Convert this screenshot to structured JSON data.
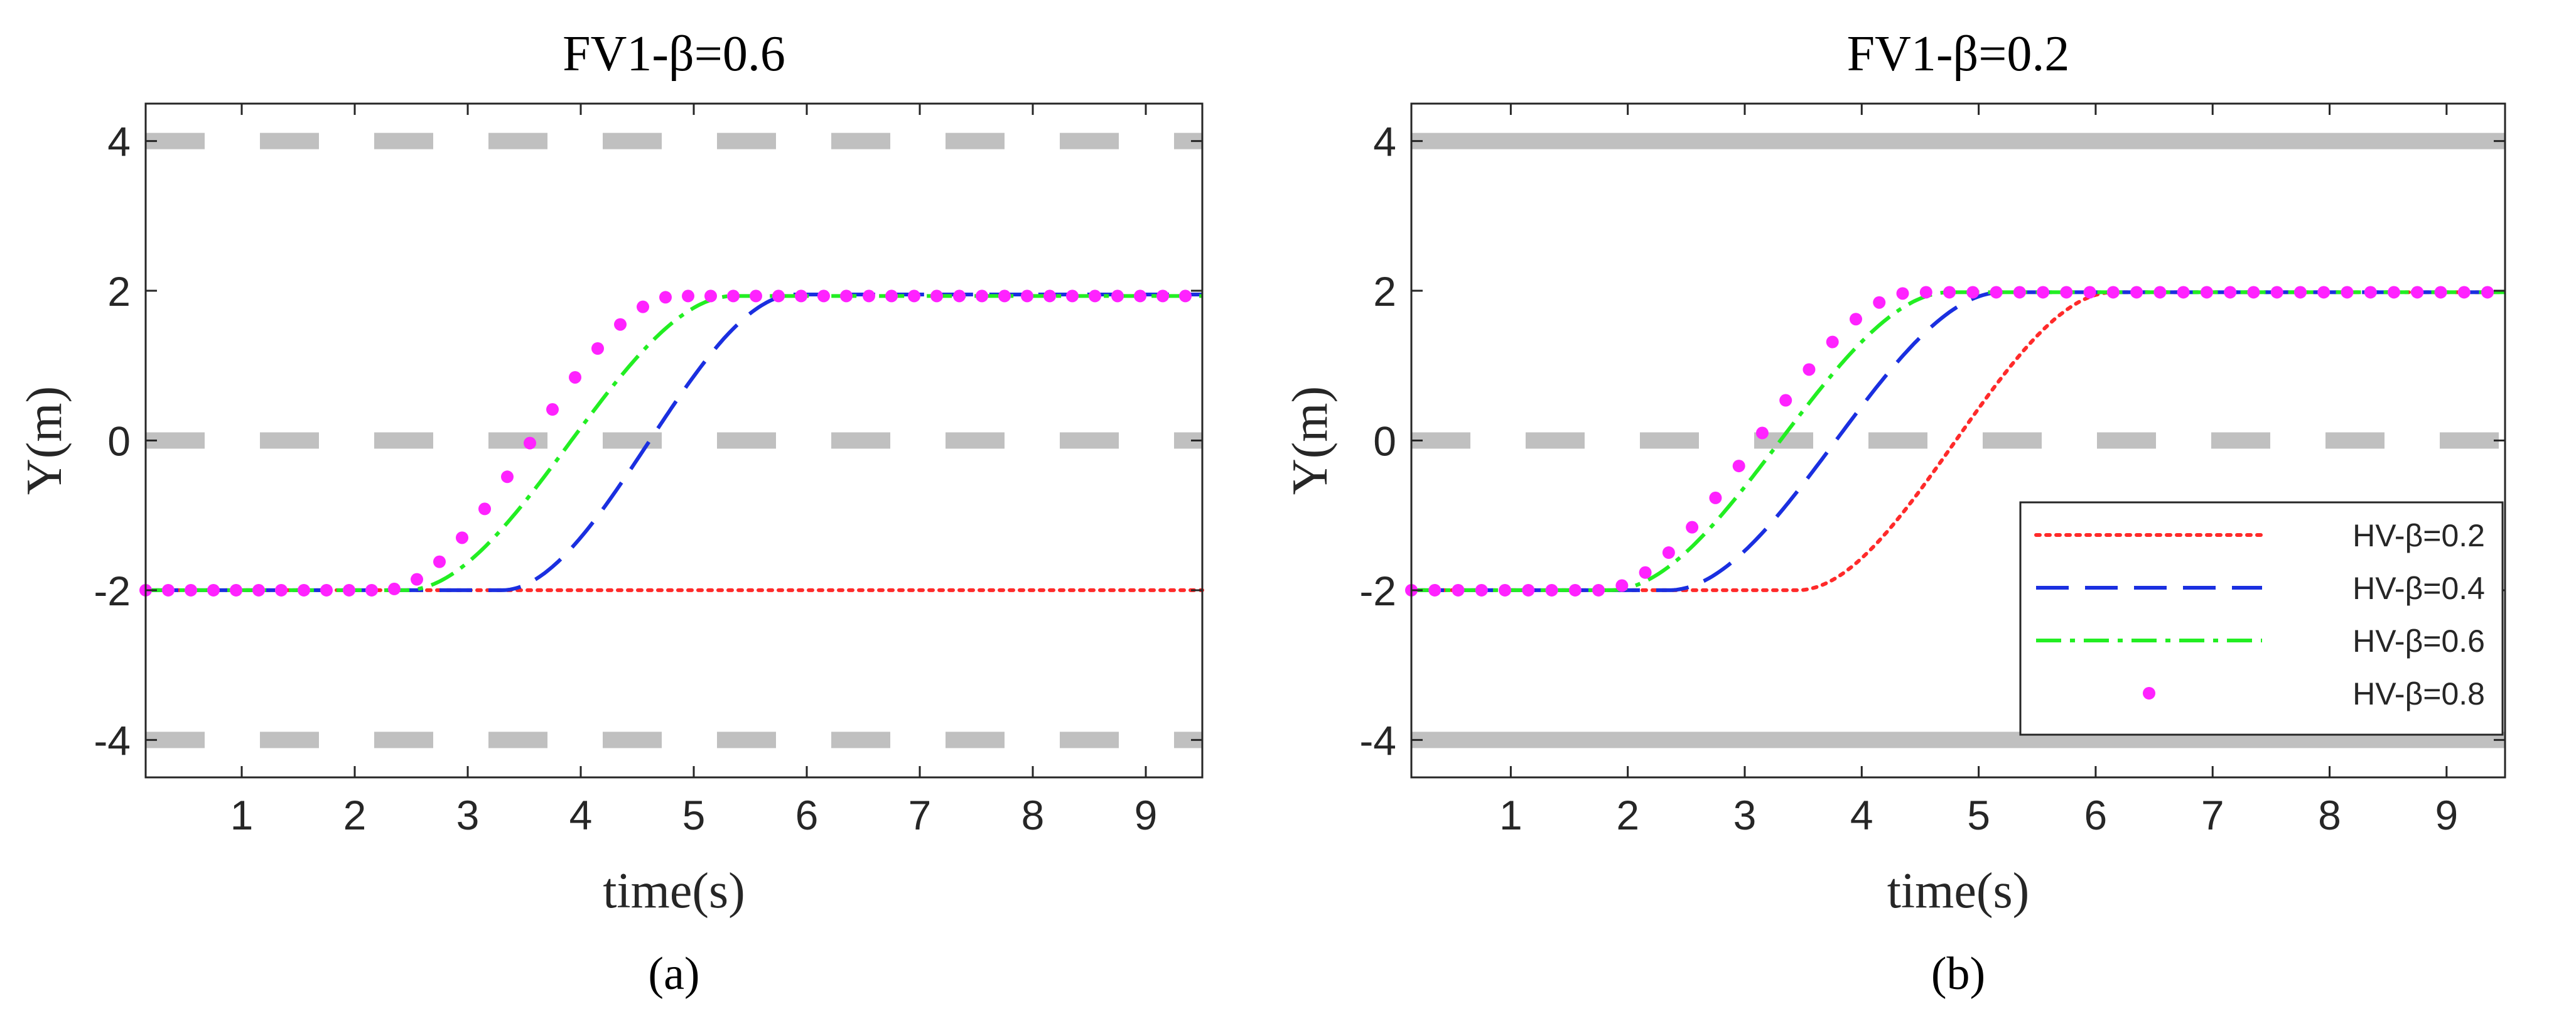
{
  "chart_data": [
    {
      "type": "line",
      "panel_label": "(a)",
      "title": "FV1-β=0.6",
      "xlabel": "time(s)",
      "ylabel": "Y(m)",
      "xlim": [
        0.15,
        9.5
      ],
      "ylim": [
        -4.5,
        4.5
      ],
      "xticks": [
        1,
        2,
        3,
        4,
        5,
        6,
        7,
        8,
        9
      ],
      "yticks": [
        -4,
        -2,
        0,
        2,
        4
      ],
      "lane_lines": [
        {
          "y": 4,
          "style": "dashed",
          "color": "#c0c0c0"
        },
        {
          "y": 0,
          "style": "dashed",
          "color": "#c0c0c0"
        },
        {
          "y": -4,
          "style": "dashed",
          "color": "#c0c0c0"
        }
      ],
      "legend": null,
      "series": [
        {
          "name": "HV-β=0.2",
          "color": "#ff2a2a",
          "style": "dotted",
          "y0": -2,
          "y1": -2,
          "t_start": null,
          "t_end": null
        },
        {
          "name": "HV-β=0.4",
          "color": "#1a2fe0",
          "style": "dashed",
          "y0": -2,
          "y1": 1.95,
          "t_start": 3.3,
          "t_end": 5.9
        },
        {
          "name": "HV-β=0.6",
          "color": "#22ee22",
          "style": "dashdot",
          "y0": -2,
          "y1": 1.93,
          "t_start": 2.45,
          "t_end": 5.35
        },
        {
          "name": "HV-β=0.8",
          "color": "#ff22ff",
          "style": "markers",
          "y0": -2,
          "y1": 1.93,
          "t_start": 2.25,
          "t_end": 4.85
        }
      ]
    },
    {
      "type": "line",
      "panel_label": "(b)",
      "title": "FV1-β=0.2",
      "xlabel": "time(s)",
      "ylabel": "Y(m)",
      "xlim": [
        0.15,
        9.5
      ],
      "ylim": [
        -4.5,
        4.5
      ],
      "xticks": [
        1,
        2,
        3,
        4,
        5,
        6,
        7,
        8,
        9
      ],
      "yticks": [
        -4,
        -2,
        0,
        2,
        4
      ],
      "lane_lines": [
        {
          "y": 4,
          "style": "solid",
          "color": "#c0c0c0"
        },
        {
          "y": 0,
          "style": "dashed",
          "color": "#c0c0c0"
        },
        {
          "y": -4,
          "style": "solid",
          "color": "#c0c0c0"
        }
      ],
      "legend": "lower-right",
      "series": [
        {
          "name": "HV-β=0.2",
          "color": "#ff2a2a",
          "style": "dotted",
          "y0": -2,
          "y1": 1.98,
          "t_start": 3.45,
          "t_end": 6.15
        },
        {
          "name": "HV-β=0.4",
          "color": "#1a2fe0",
          "style": "dashed",
          "y0": -2,
          "y1": 1.98,
          "t_start": 2.35,
          "t_end": 5.2
        },
        {
          "name": "HV-β=0.6",
          "color": "#22ee22",
          "style": "dashdot",
          "y0": -2,
          "y1": 1.98,
          "t_start": 1.85,
          "t_end": 4.75
        },
        {
          "name": "HV-β=0.8",
          "color": "#ff22ff",
          "style": "markers",
          "y0": -2,
          "y1": 1.98,
          "t_start": 1.75,
          "t_end": 4.45
        }
      ]
    }
  ]
}
